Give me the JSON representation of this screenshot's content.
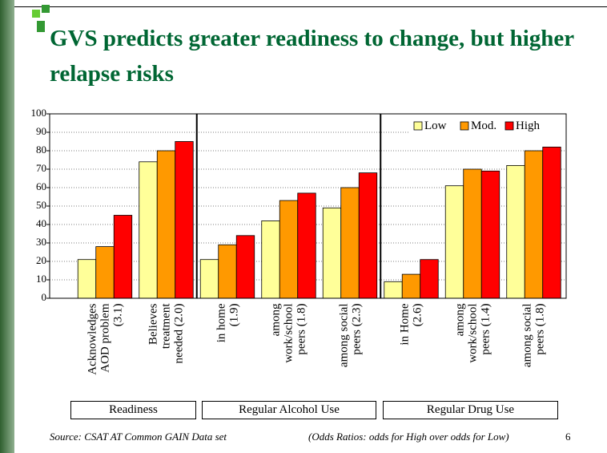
{
  "chart_data": {
    "type": "bar",
    "title": "GVS predicts greater readiness to change, but higher relapse risks",
    "categories": [
      "Acknowledges\nAOD problem\n(3.1)",
      "Believes\ntreatment\nneeded (2.0)",
      "in home\n(1.9)",
      "among\nwork/school\npeers (1.8)",
      "among social\npeers (2.3)",
      "in Home\n(2.6)",
      "among\nwork/school\npeers (1.4)",
      "among social\npeers (1.8)"
    ],
    "series": [
      {
        "name": "Low",
        "color": "#ffff99",
        "values": [
          21,
          74,
          21,
          42,
          49,
          9,
          61,
          72
        ]
      },
      {
        "name": "Mod.",
        "color": "#ff9900",
        "values": [
          28,
          80,
          29,
          53,
          60,
          13,
          70,
          80
        ]
      },
      {
        "name": "High",
        "color": "#ff0000",
        "values": [
          45,
          85,
          34,
          57,
          68,
          21,
          69,
          82
        ]
      }
    ],
    "ylim": [
      0,
      100
    ],
    "yticks": [
      0,
      10,
      20,
      30,
      40,
      50,
      60,
      70,
      80,
      90,
      100
    ],
    "grid": true,
    "legend": "upper right",
    "group_labels": [
      "Readiness",
      "Regular Alcohol Use",
      "Regular Drug Use"
    ],
    "source": "Source:  CSAT AT Common GAIN Data set",
    "note": "(Odds Ratios: odds for High over odds for Low)",
    "page_number": "6"
  }
}
